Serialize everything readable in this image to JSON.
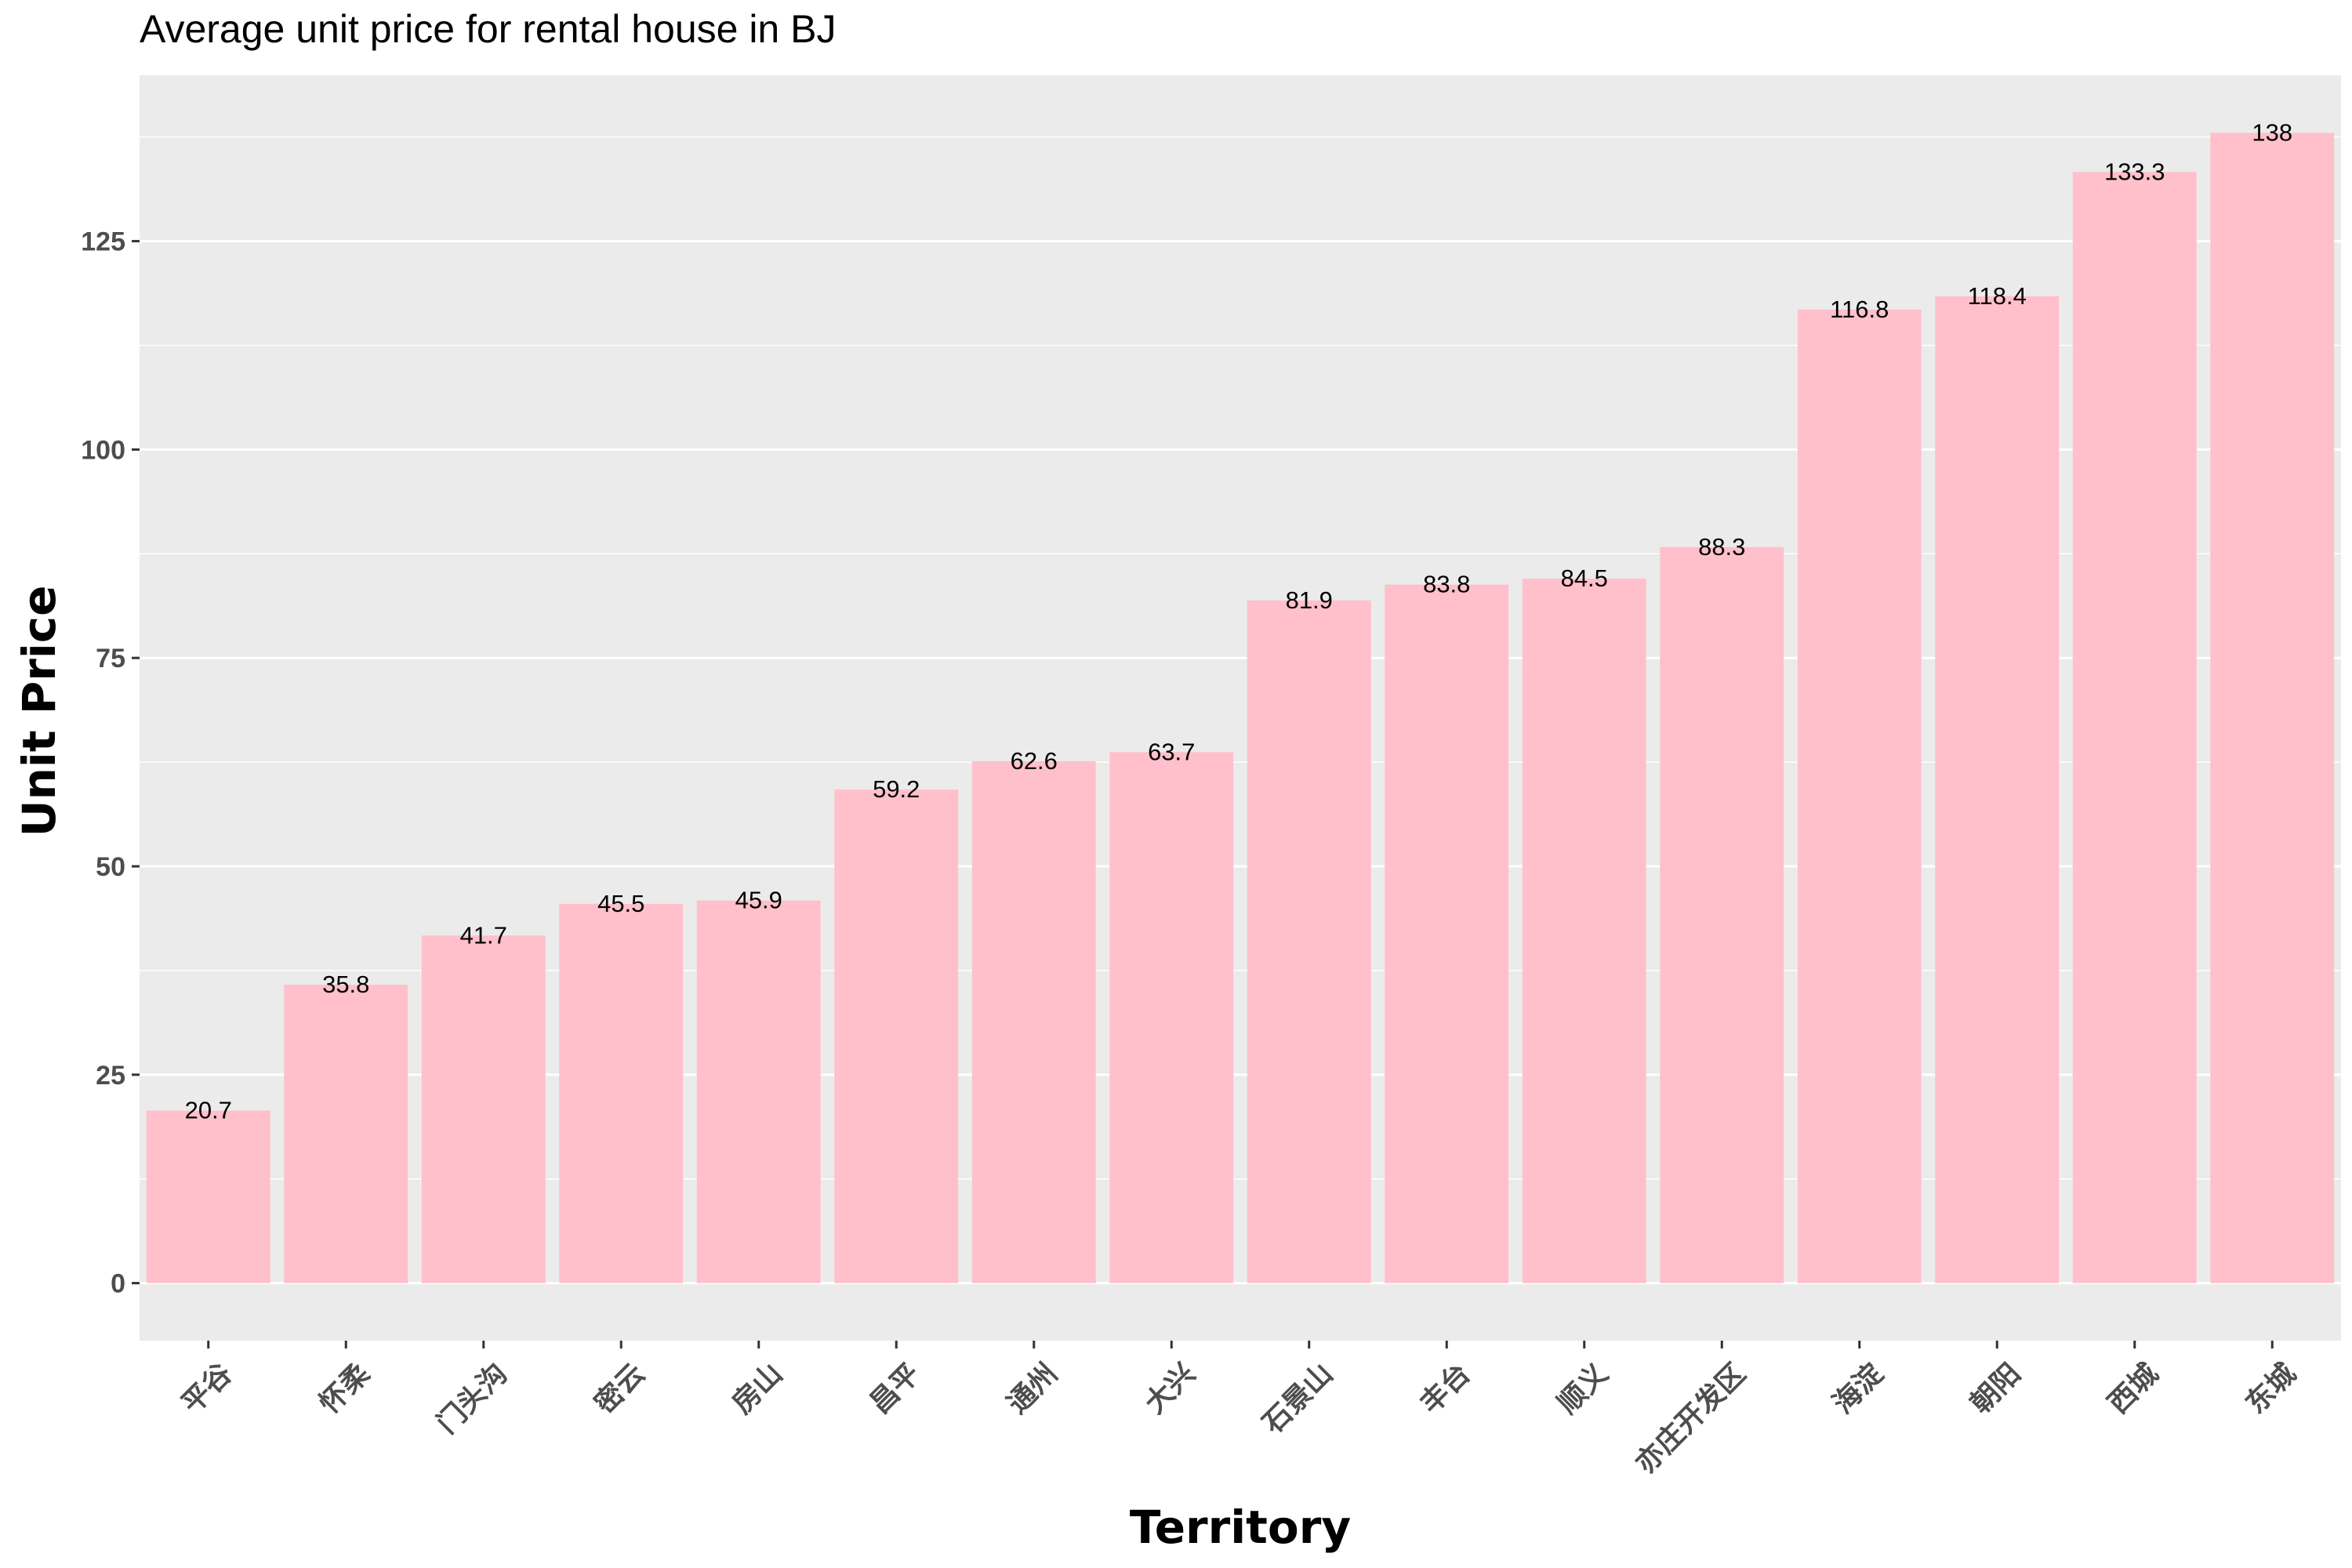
{
  "chart_data": {
    "type": "bar",
    "title": "Average unit price for rental house in BJ",
    "xlabel": "Territory",
    "ylabel": "Unit Price",
    "categories": [
      "平谷",
      "怀柔",
      "门头沟",
      "密云",
      "房山",
      "昌平",
      "通州",
      "大兴",
      "石景山",
      "丰台",
      "顺义",
      "亦庄开发区",
      "海淀",
      "朝阳",
      "西城",
      "东城"
    ],
    "values": [
      20.7,
      35.8,
      41.7,
      45.5,
      45.9,
      59.2,
      62.6,
      63.7,
      81.9,
      83.8,
      84.5,
      88.3,
      116.8,
      118.4,
      133.3,
      138
    ],
    "data_labels": [
      "20.7",
      "35.8",
      "41.7",
      "45.5",
      "45.9",
      "59.2",
      "62.6",
      "63.7",
      "81.9",
      "83.8",
      "84.5",
      "88.3",
      "116.8",
      "118.4",
      "133.3",
      "138"
    ],
    "yticks": [
      0,
      25,
      50,
      75,
      100,
      125
    ],
    "ylim": [
      -6.9,
      144.9
    ],
    "grid": true,
    "legend": "none",
    "colors": {
      "bar": "#ffc0cb",
      "panel": "#ebebeb",
      "grid": "#ffffff",
      "tick_text": "#4d4d4d"
    }
  }
}
